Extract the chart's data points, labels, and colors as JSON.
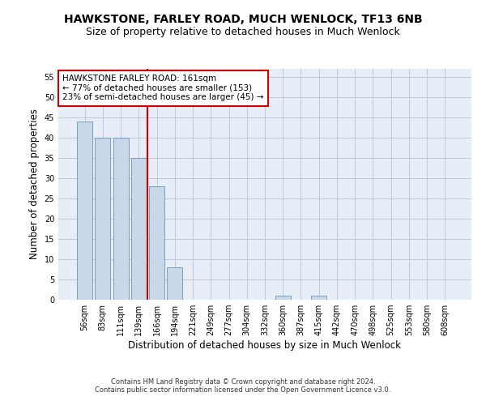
{
  "title": "HAWKSTONE, FARLEY ROAD, MUCH WENLOCK, TF13 6NB",
  "subtitle": "Size of property relative to detached houses in Much Wenlock",
  "xlabel": "Distribution of detached houses by size in Much Wenlock",
  "ylabel": "Number of detached properties",
  "footnote1": "Contains HM Land Registry data © Crown copyright and database right 2024.",
  "footnote2": "Contains public sector information licensed under the Open Government Licence v3.0.",
  "categories": [
    "56sqm",
    "83sqm",
    "111sqm",
    "139sqm",
    "166sqm",
    "194sqm",
    "221sqm",
    "249sqm",
    "277sqm",
    "304sqm",
    "332sqm",
    "360sqm",
    "387sqm",
    "415sqm",
    "442sqm",
    "470sqm",
    "498sqm",
    "525sqm",
    "553sqm",
    "580sqm",
    "608sqm"
  ],
  "values": [
    44,
    40,
    40,
    35,
    28,
    8,
    0,
    0,
    0,
    0,
    0,
    1,
    0,
    1,
    0,
    0,
    0,
    0,
    0,
    0,
    0
  ],
  "bar_color": "#c8d8e8",
  "bar_edgecolor": "#5588aa",
  "vline_x_index": 3.5,
  "vline_color": "#cc0000",
  "annotation_text": "HAWKSTONE FARLEY ROAD: 161sqm\n← 77% of detached houses are smaller (153)\n23% of semi-detached houses are larger (45) →",
  "annotation_box_color": "#ffffff",
  "annotation_box_edgecolor": "#cc0000",
  "ylim": [
    0,
    57
  ],
  "yticks": [
    0,
    5,
    10,
    15,
    20,
    25,
    30,
    35,
    40,
    45,
    50,
    55
  ],
  "grid_color": "#c0c8d8",
  "bg_color": "#e8eef8",
  "title_fontsize": 10,
  "subtitle_fontsize": 9,
  "label_fontsize": 8.5,
  "tick_fontsize": 7,
  "annot_fontsize": 7.5,
  "footnote_fontsize": 6
}
